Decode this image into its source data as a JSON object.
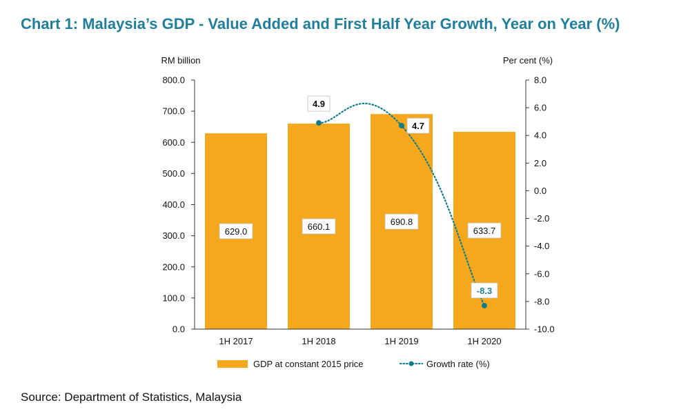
{
  "title": "Chart 1: Malaysia’s GDP - Value Added and First Half Year Growth, Year on Year (%)",
  "source": "Source: Department of Statistics, Malaysia",
  "colors": {
    "title": "#1f7f9a",
    "bar": "#f5a81c",
    "line": "#0f7c8c",
    "negative_label": "#1f7f9a"
  },
  "chart_data": {
    "type": "bar",
    "categories": [
      "1H 2017",
      "1H 2018",
      "1H 2019",
      "1H 2020"
    ],
    "y_left_label": "RM billion",
    "y_right_label": "Per cent (%)",
    "y_left_range": [
      0,
      800
    ],
    "y_left_ticks": [
      "0.0",
      "100.0",
      "200.0",
      "300.0",
      "400.0",
      "500.0",
      "600.0",
      "700.0",
      "800.0"
    ],
    "y_right_range": [
      -10,
      8
    ],
    "y_right_ticks": [
      "-10.0",
      "-8.0",
      "-6.0",
      "-4.0",
      "-2.0",
      "0.0",
      "2.0",
      "4.0",
      "6.0",
      "8.0"
    ],
    "series": [
      {
        "name": "GDP at constant 2015 price",
        "type": "bar",
        "axis": "left",
        "values": [
          629.0,
          660.1,
          690.8,
          633.7
        ],
        "labels": [
          "629.0",
          "660.1",
          "690.8",
          "633.7"
        ]
      },
      {
        "name": "Growth rate (%)",
        "type": "line",
        "style": "dotted, smoothed, with markers",
        "axis": "right",
        "points": [
          {
            "category": "1H 2018",
            "value": 4.9,
            "label": "4.9"
          },
          {
            "category": "1H 2019",
            "value": 4.7,
            "label": "4.7"
          },
          {
            "category": "1H 2020",
            "value": -8.3,
            "label": "-8.3"
          }
        ]
      }
    ],
    "legend_position": "bottom",
    "grid": false
  }
}
